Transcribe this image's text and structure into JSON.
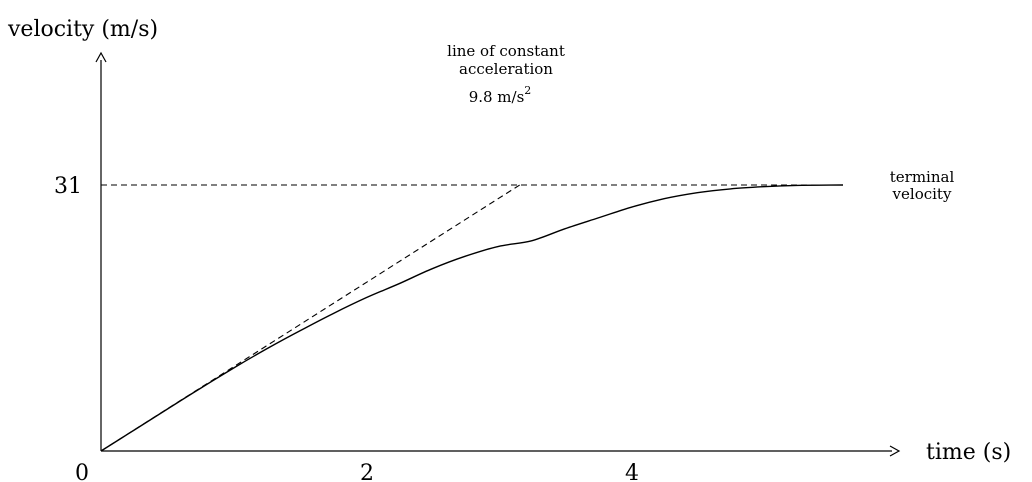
{
  "chart_data": {
    "type": "line",
    "title": "",
    "xlabel": "time (s)",
    "ylabel": "velocity (m/s)",
    "xlim": [
      0,
      6
    ],
    "ylim": [
      0,
      31
    ],
    "x_ticks": [
      "0",
      "2",
      "4"
    ],
    "y_ticks": [
      "31"
    ],
    "grid": false,
    "series": [
      {
        "style": "solid",
        "x": [
          0,
          0.25,
          0.5,
          0.75,
          1.0,
          1.25,
          1.5,
          1.75,
          2.0,
          2.25,
          2.5,
          2.75,
          3.0,
          3.25,
          3.5,
          3.75,
          4.0,
          4.25,
          4.5,
          4.75,
          5.0,
          5.25,
          5.6
        ],
        "y": [
          0,
          2.43,
          4.88,
          7.3,
          9.66,
          11.9,
          14.0,
          16.0,
          17.85,
          19.5,
          21.25,
          22.7,
          23.85,
          24.5,
          25.9,
          27.15,
          28.4,
          29.4,
          30.1,
          30.55,
          30.8,
          30.95,
          31.0
        ]
      },
      {
        "style": "dashed",
        "label_lines": [
          "line of constant",
          "acceleration",
          "9.8 m/s"
        ],
        "label_superscript": "2",
        "x": [
          0,
          3.16
        ],
        "y": [
          0,
          31
        ]
      },
      {
        "style": "dashed",
        "label_lines": [
          "terminal",
          "velocity"
        ],
        "x": [
          0,
          5.6
        ],
        "y": [
          31,
          31
        ]
      }
    ]
  }
}
